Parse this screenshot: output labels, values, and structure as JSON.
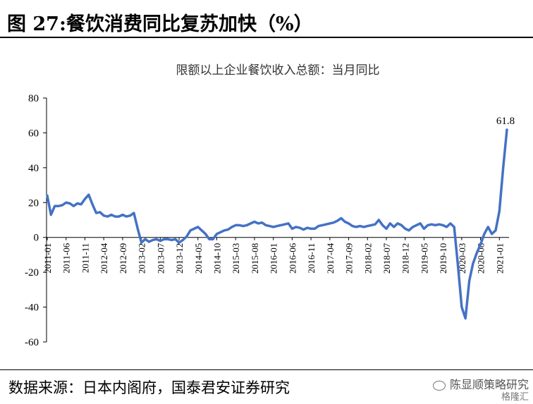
{
  "figure": {
    "title": "图 27:餐饮消费同比复苏加快（%）",
    "source": "数据来源：日本内阁府，国泰君安证券研究",
    "watermark": "陈显顺策略研究",
    "watermark_sub": "格隆汇"
  },
  "chart_data": {
    "type": "line",
    "title": "限额以上企业餐饮收入总额：当月同比",
    "xlabel": "",
    "ylabel": "",
    "ylim": [
      -60,
      80
    ],
    "yticks": [
      80,
      60,
      40,
      20,
      0,
      -20,
      -40,
      -60
    ],
    "tick_labels": [
      "2011-01",
      "2011-06",
      "2011-11",
      "2012-04",
      "2012-09",
      "2013-02",
      "2013-07",
      "2013-12",
      "2014-05",
      "2014-10",
      "2015-03",
      "2015-08",
      "2016-01",
      "2016-06",
      "2016-11",
      "2017-04",
      "2017-09",
      "2018-02",
      "2018-07",
      "2018-12",
      "2019-05",
      "2019-10",
      "2020-03",
      "2020-08",
      "2021-01"
    ],
    "annotation": "61.8",
    "line_color": "#4472C4",
    "series": [
      {
        "x": [
          "2011-01",
          "2011-02",
          "2011-03",
          "2011-04",
          "2011-05",
          "2011-06",
          "2011-07",
          "2011-08",
          "2011-09",
          "2011-10",
          "2011-11",
          "2011-12",
          "2012-01",
          "2012-02",
          "2012-03",
          "2012-04",
          "2012-05",
          "2012-06",
          "2012-07",
          "2012-08",
          "2012-09",
          "2012-10",
          "2012-11",
          "2012-12",
          "2013-01",
          "2013-02",
          "2013-03",
          "2013-04",
          "2013-05",
          "2013-06",
          "2013-07",
          "2013-08",
          "2013-09",
          "2013-10",
          "2013-11",
          "2013-12",
          "2014-01",
          "2014-02",
          "2014-03",
          "2014-04",
          "2014-05",
          "2014-06",
          "2014-07",
          "2014-08",
          "2014-09",
          "2014-10",
          "2014-11",
          "2014-12",
          "2015-01",
          "2015-02",
          "2015-03",
          "2015-04",
          "2015-05",
          "2015-06",
          "2015-07",
          "2015-08",
          "2015-09",
          "2015-10",
          "2015-11",
          "2015-12",
          "2016-01",
          "2016-02",
          "2016-03",
          "2016-04",
          "2016-05",
          "2016-06",
          "2016-07",
          "2016-08",
          "2016-09",
          "2016-10",
          "2016-11",
          "2016-12",
          "2017-01",
          "2017-02",
          "2017-03",
          "2017-04",
          "2017-05",
          "2017-06",
          "2017-07",
          "2017-08",
          "2017-09",
          "2017-10",
          "2017-11",
          "2017-12",
          "2018-01",
          "2018-02",
          "2018-03",
          "2018-04",
          "2018-05",
          "2018-06",
          "2018-07",
          "2018-08",
          "2018-09",
          "2018-10",
          "2018-11",
          "2018-12",
          "2019-01",
          "2019-02",
          "2019-03",
          "2019-04",
          "2019-05",
          "2019-06",
          "2019-07",
          "2019-08",
          "2019-09",
          "2019-10",
          "2019-11",
          "2019-12",
          "2020-01",
          "2020-02",
          "2020-03",
          "2020-04",
          "2020-05",
          "2020-06",
          "2020-07",
          "2020-08",
          "2020-09",
          "2020-10",
          "2020-11",
          "2020-12",
          "2021-01",
          "2021-02",
          "2021-03"
        ],
        "values": [
          24,
          13,
          18,
          18,
          18.5,
          20,
          19.5,
          18,
          19.5,
          19,
          22,
          24.5,
          19,
          14,
          14.5,
          12.5,
          12,
          13,
          12,
          12,
          13,
          12,
          12.5,
          14,
          5,
          -3,
          -1,
          -2.5,
          -1.5,
          -1,
          -2,
          -1,
          -1,
          -1.5,
          -1,
          -3,
          -1.5,
          0.5,
          4,
          5,
          6,
          4,
          2,
          -1,
          -1,
          2,
          3,
          4,
          4.5,
          6,
          7,
          7,
          6.5,
          7,
          8,
          9,
          8,
          8.5,
          7,
          6.5,
          6,
          6.5,
          7,
          7.5,
          8,
          5,
          6,
          5.5,
          4.5,
          5.5,
          5,
          5,
          6.5,
          7,
          7.5,
          8,
          8.5,
          9.5,
          11,
          9,
          8,
          6.5,
          6,
          6.5,
          6,
          6.5,
          7,
          7.5,
          10,
          7,
          5,
          8,
          6,
          8,
          7,
          5,
          4,
          6,
          7,
          8,
          5,
          7,
          7.5,
          7,
          7.5,
          7,
          6,
          8,
          6,
          -16,
          -40,
          -46.5,
          -25,
          -15,
          -9,
          -4,
          2,
          6,
          2,
          4,
          15,
          40,
          61.8
        ]
      }
    ]
  }
}
